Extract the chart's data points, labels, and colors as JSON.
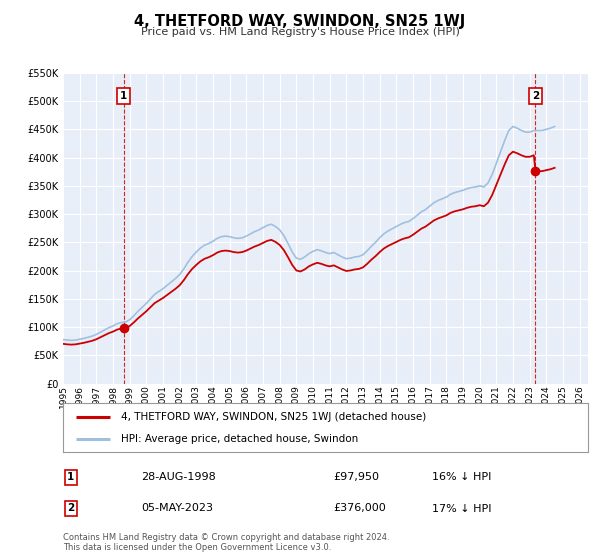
{
  "title": "4, THETFORD WAY, SWINDON, SN25 1WJ",
  "subtitle": "Price paid vs. HM Land Registry's House Price Index (HPI)",
  "xlim": [
    1995.0,
    2026.5
  ],
  "ylim": [
    0,
    550000
  ],
  "yticks": [
    0,
    50000,
    100000,
    150000,
    200000,
    250000,
    300000,
    350000,
    400000,
    450000,
    500000,
    550000
  ],
  "ytick_labels": [
    "£0",
    "£50K",
    "£100K",
    "£150K",
    "£200K",
    "£250K",
    "£300K",
    "£350K",
    "£400K",
    "£450K",
    "£500K",
    "£550K"
  ],
  "xticks": [
    1995,
    1996,
    1997,
    1998,
    1999,
    2000,
    2001,
    2002,
    2003,
    2004,
    2005,
    2006,
    2007,
    2008,
    2009,
    2010,
    2011,
    2012,
    2013,
    2014,
    2015,
    2016,
    2017,
    2018,
    2019,
    2020,
    2021,
    2022,
    2023,
    2024,
    2025,
    2026
  ],
  "plot_bg_color": "#e8eef8",
  "grid_color": "#ffffff",
  "red_line_color": "#cc0000",
  "blue_line_color": "#a0c0e0",
  "marker1_date": 1998.65,
  "marker1_value": 97950,
  "marker2_date": 2023.35,
  "marker2_value": 376000,
  "legend_label1": "4, THETFORD WAY, SWINDON, SN25 1WJ (detached house)",
  "legend_label2": "HPI: Average price, detached house, Swindon",
  "table_rows": [
    {
      "num": "1",
      "date": "28-AUG-1998",
      "price": "£97,950",
      "hpi": "16% ↓ HPI"
    },
    {
      "num": "2",
      "date": "05-MAY-2023",
      "price": "£376,000",
      "hpi": "17% ↓ HPI"
    }
  ],
  "footnote1": "Contains HM Land Registry data © Crown copyright and database right 2024.",
  "footnote2": "This data is licensed under the Open Government Licence v3.0.",
  "hpi_years": [
    1995.0,
    1995.25,
    1995.5,
    1995.75,
    1996.0,
    1996.25,
    1996.5,
    1996.75,
    1997.0,
    1997.25,
    1997.5,
    1997.75,
    1998.0,
    1998.25,
    1998.5,
    1998.75,
    1999.0,
    1999.25,
    1999.5,
    1999.75,
    2000.0,
    2000.25,
    2000.5,
    2000.75,
    2001.0,
    2001.25,
    2001.5,
    2001.75,
    2002.0,
    2002.25,
    2002.5,
    2002.75,
    2003.0,
    2003.25,
    2003.5,
    2003.75,
    2004.0,
    2004.25,
    2004.5,
    2004.75,
    2005.0,
    2005.25,
    2005.5,
    2005.75,
    2006.0,
    2006.25,
    2006.5,
    2006.75,
    2007.0,
    2007.25,
    2007.5,
    2007.75,
    2008.0,
    2008.25,
    2008.5,
    2008.75,
    2009.0,
    2009.25,
    2009.5,
    2009.75,
    2010.0,
    2010.25,
    2010.5,
    2010.75,
    2011.0,
    2011.25,
    2011.5,
    2011.75,
    2012.0,
    2012.25,
    2012.5,
    2012.75,
    2013.0,
    2013.25,
    2013.5,
    2013.75,
    2014.0,
    2014.25,
    2014.5,
    2014.75,
    2015.0,
    2015.25,
    2015.5,
    2015.75,
    2016.0,
    2016.25,
    2016.5,
    2016.75,
    2017.0,
    2017.25,
    2017.5,
    2017.75,
    2018.0,
    2018.25,
    2018.5,
    2018.75,
    2019.0,
    2019.25,
    2019.5,
    2019.75,
    2020.0,
    2020.25,
    2020.5,
    2020.75,
    2021.0,
    2021.25,
    2021.5,
    2021.75,
    2022.0,
    2022.25,
    2022.5,
    2022.75,
    2023.0,
    2023.25,
    2023.5,
    2023.75,
    2024.0,
    2024.25,
    2024.5
  ],
  "hpi_values": [
    78000,
    77000,
    76500,
    77000,
    78500,
    80000,
    82000,
    84000,
    87000,
    91000,
    95000,
    99000,
    102000,
    106000,
    108000,
    109000,
    113000,
    120000,
    128000,
    135000,
    142000,
    150000,
    158000,
    163000,
    168000,
    174000,
    180000,
    186000,
    193000,
    203000,
    215000,
    225000,
    233000,
    240000,
    245000,
    248000,
    252000,
    257000,
    260000,
    261000,
    260000,
    258000,
    257000,
    258000,
    261000,
    265000,
    269000,
    272000,
    276000,
    280000,
    282000,
    278000,
    272000,
    262000,
    248000,
    233000,
    222000,
    220000,
    224000,
    230000,
    234000,
    237000,
    235000,
    232000,
    230000,
    232000,
    228000,
    224000,
    221000,
    222000,
    224000,
    225000,
    228000,
    235000,
    243000,
    250000,
    258000,
    265000,
    270000,
    274000,
    278000,
    282000,
    285000,
    287000,
    292000,
    298000,
    304000,
    308000,
    314000,
    320000,
    324000,
    327000,
    330000,
    335000,
    338000,
    340000,
    342000,
    345000,
    347000,
    348000,
    350000,
    348000,
    355000,
    370000,
    390000,
    410000,
    430000,
    448000,
    455000,
    452000,
    448000,
    445000,
    445000,
    448000,
    448000,
    448000,
    450000,
    452000,
    455000
  ]
}
